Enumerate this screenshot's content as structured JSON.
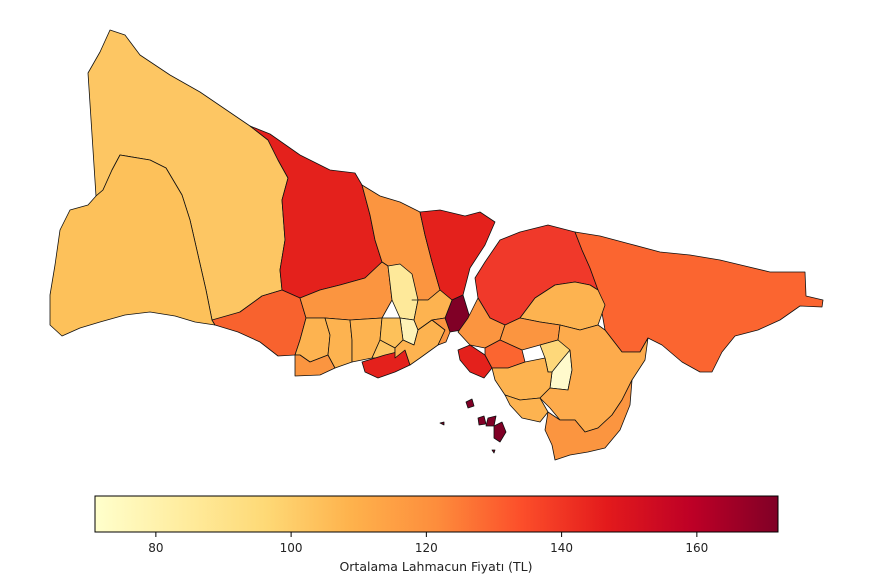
{
  "colorbar": {
    "label": "Ortalama Lahmacun Fiyatı (TL)",
    "min": 71,
    "max": 172,
    "ticks": [
      80,
      100,
      120,
      140,
      160
    ],
    "colormap": [
      "#ffffcc",
      "#ffeda0",
      "#fed976",
      "#feb24c",
      "#fd8d3c",
      "#fc4e2a",
      "#e31a1c",
      "#bd0026",
      "#800026"
    ]
  }
}
